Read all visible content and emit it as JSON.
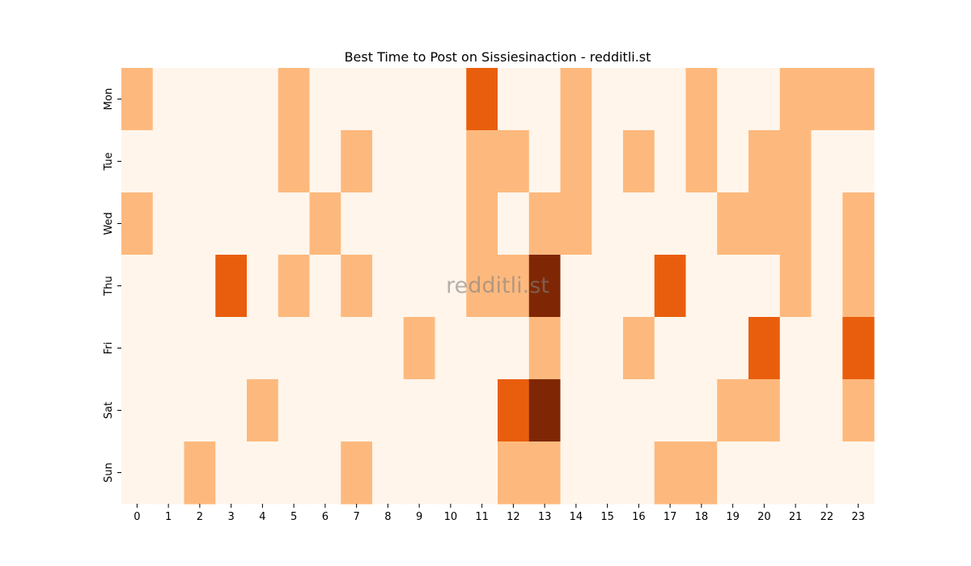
{
  "chart_data": {
    "type": "heatmap",
    "title": "Best Time to Post on Sissiesinaction - redditli.st",
    "watermark": "redditli.st",
    "xlabel": "",
    "ylabel": "",
    "x_categories": [
      "0",
      "1",
      "2",
      "3",
      "4",
      "5",
      "6",
      "7",
      "8",
      "9",
      "10",
      "11",
      "12",
      "13",
      "14",
      "15",
      "16",
      "17",
      "18",
      "19",
      "20",
      "21",
      "22",
      "23"
    ],
    "y_categories": [
      "Mon",
      "Tue",
      "Wed",
      "Thu",
      "Fri",
      "Sat",
      "Sun"
    ],
    "values": [
      [
        1,
        0,
        0,
        0,
        0,
        1,
        0,
        0,
        0,
        0,
        0,
        2,
        0,
        0,
        1,
        0,
        0,
        0,
        1,
        0,
        0,
        1,
        1,
        1
      ],
      [
        0,
        0,
        0,
        0,
        0,
        1,
        0,
        1,
        0,
        0,
        0,
        1,
        1,
        0,
        1,
        0,
        1,
        0,
        1,
        0,
        1,
        1,
        0,
        0
      ],
      [
        1,
        0,
        0,
        0,
        0,
        0,
        1,
        0,
        0,
        0,
        0,
        1,
        0,
        1,
        1,
        0,
        0,
        0,
        0,
        1,
        1,
        1,
        0,
        1
      ],
      [
        0,
        0,
        0,
        2,
        0,
        1,
        0,
        1,
        0,
        0,
        0,
        1,
        1,
        3,
        0,
        0,
        0,
        2,
        0,
        0,
        0,
        1,
        0,
        1
      ],
      [
        0,
        0,
        0,
        0,
        0,
        0,
        0,
        0,
        0,
        1,
        0,
        0,
        0,
        1,
        0,
        0,
        1,
        0,
        0,
        0,
        2,
        0,
        0,
        2
      ],
      [
        0,
        0,
        0,
        0,
        1,
        0,
        0,
        0,
        0,
        0,
        0,
        0,
        2,
        3,
        0,
        0,
        0,
        0,
        0,
        1,
        1,
        0,
        0,
        1
      ],
      [
        0,
        0,
        1,
        0,
        0,
        0,
        0,
        1,
        0,
        0,
        0,
        0,
        1,
        1,
        0,
        0,
        0,
        1,
        1,
        0,
        0,
        0,
        0,
        0
      ]
    ],
    "color_scale": [
      "#fff5eb",
      "#fdb97d",
      "#e95e0d",
      "#7f2704"
    ],
    "grid": false,
    "legend": "none"
  }
}
